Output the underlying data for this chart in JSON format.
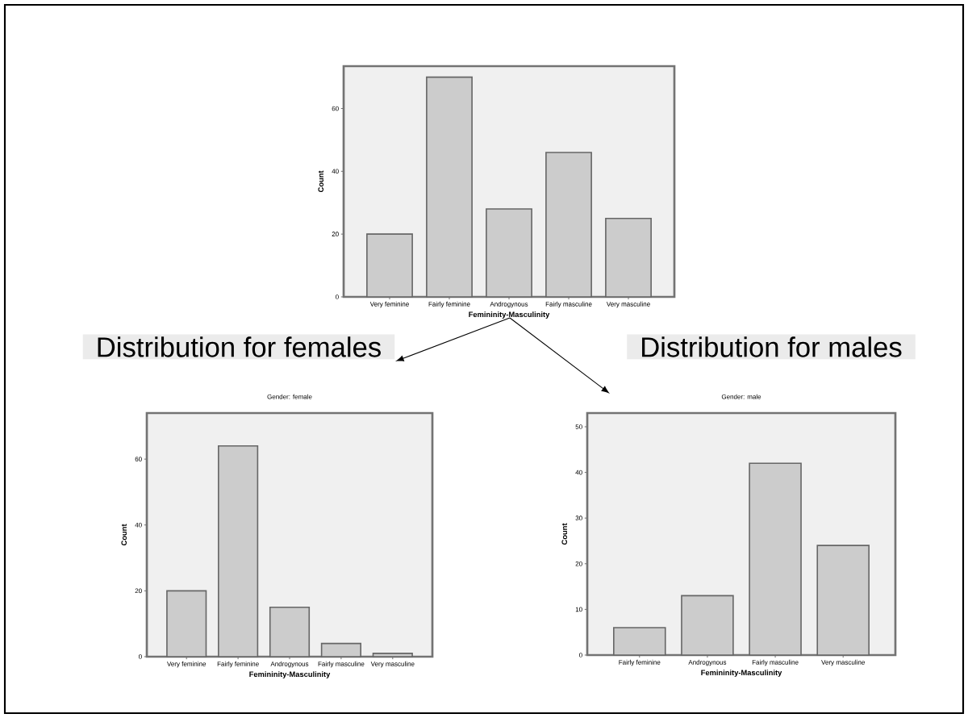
{
  "chart_data": [
    {
      "type": "bar",
      "categories": [
        "Very feminine",
        "Fairly feminine",
        "Androgynous",
        "Fairly masculine",
        "Very masculine"
      ],
      "values": [
        20,
        70,
        28,
        46,
        25
      ],
      "color": "#cccccc",
      "xlabel": "Femininity-Masculinity",
      "ylabel": "Count",
      "ylim": [
        0,
        73.5
      ],
      "yticks": [
        0,
        20,
        40,
        60
      ],
      "grid": false
    },
    {
      "type": "bar",
      "title": "Gender: female",
      "annotations": [
        "Distribution for females"
      ],
      "categories": [
        "Very feminine",
        "Fairly feminine",
        "Androgynous",
        "Fairly masculine",
        "Very masculine"
      ],
      "values": [
        20,
        64,
        15,
        4,
        1
      ],
      "color": "#cccccc",
      "xlabel": "Femininity-Masculinity",
      "ylabel": "Count",
      "ylim": [
        0,
        74
      ],
      "yticks": [
        0,
        20,
        40,
        60
      ],
      "grid": false
    },
    {
      "type": "bar",
      "title": "Gender: male",
      "annotations": [
        "Distribution for males"
      ],
      "categories": [
        "Fairly feminine",
        "Androgynous",
        "Fairly masculine",
        "Very masculine"
      ],
      "values": [
        6,
        13,
        42,
        24
      ],
      "color": "#cccccc",
      "xlabel": "Femininity-Masculinity",
      "ylabel": "Count",
      "ylim": [
        0,
        53
      ],
      "yticks": [
        0,
        10,
        20,
        30,
        40,
        50
      ],
      "grid": false
    }
  ]
}
